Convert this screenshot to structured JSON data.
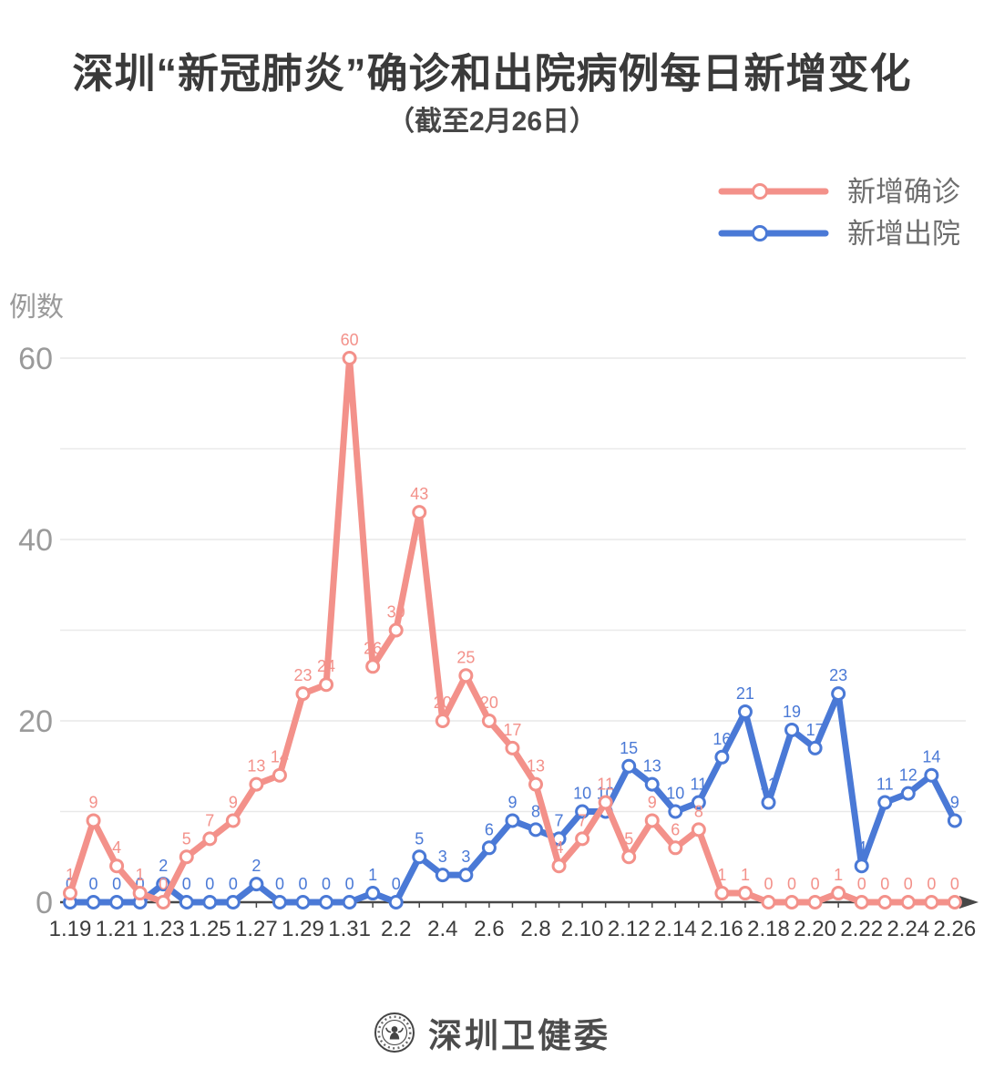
{
  "header": {
    "title": "深圳“新冠肺炎”确诊和出院病例每日新增变化",
    "subtitle": "（截至2月26日）"
  },
  "legend": [
    {
      "label": "新增确诊",
      "color": "#F3918A"
    },
    {
      "label": "新增出院",
      "color": "#4A79D6"
    }
  ],
  "footer": {
    "brand": "深圳卫健委"
  },
  "colors": {
    "confirmed": "#F3918A",
    "discharged": "#4A79D6",
    "grid": "#E9E9E9",
    "axis": "#474747",
    "y_label": "#9A9A9A",
    "x_label": "#3C3C3C"
  },
  "chart_data": {
    "type": "line",
    "title": "深圳“新冠肺炎”确诊和出院病例每日新增变化",
    "subtitle": "（截至2月26日）",
    "xlabel": "",
    "ylabel": "例数",
    "yticks": [
      0,
      20,
      40,
      60
    ],
    "ylim": [
      0,
      63
    ],
    "grid": "horizontal lines every 10 units",
    "legend_position": "top-right",
    "marker": "open-circle",
    "x": [
      "1.19",
      "1.20",
      "1.21",
      "1.22",
      "1.23",
      "1.24",
      "1.25",
      "1.26",
      "1.27",
      "1.28",
      "1.29",
      "1.30",
      "1.31",
      "2.1",
      "2.2",
      "2.3",
      "2.4",
      "2.5",
      "2.6",
      "2.7",
      "2.8",
      "2.9",
      "2.10",
      "2.11",
      "2.12",
      "2.13",
      "2.14",
      "2.15",
      "2.16",
      "2.17",
      "2.18",
      "2.19",
      "2.20",
      "2.21",
      "2.22",
      "2.23",
      "2.24",
      "2.25",
      "2.26"
    ],
    "xticks_shown": [
      "1.19",
      "1.21",
      "1.23",
      "1.25",
      "1.27",
      "1.29",
      "1.31",
      "2.2",
      "2.4",
      "2.6",
      "2.8",
      "2.10",
      "2.12",
      "2.14",
      "2.16",
      "2.18",
      "2.20",
      "2.22",
      "2.24",
      "2.26"
    ],
    "series": [
      {
        "name": "新增确诊",
        "color": "#F3918A",
        "values": [
          1,
          9,
          4,
          1,
          0,
          5,
          7,
          9,
          13,
          14,
          23,
          24,
          60,
          26,
          30,
          43,
          20,
          25,
          20,
          17,
          13,
          4,
          7,
          11,
          5,
          9,
          6,
          8,
          1,
          1,
          0,
          0,
          0,
          1,
          0,
          0,
          0,
          0,
          0
        ]
      },
      {
        "name": "新增出院",
        "color": "#4A79D6",
        "values": [
          0,
          0,
          0,
          0,
          2,
          0,
          0,
          0,
          2,
          0,
          0,
          0,
          0,
          1,
          0,
          5,
          3,
          3,
          6,
          9,
          8,
          7,
          10,
          10,
          15,
          13,
          10,
          11,
          16,
          21,
          11,
          19,
          17,
          23,
          4,
          11,
          12,
          14,
          9
        ]
      }
    ]
  }
}
